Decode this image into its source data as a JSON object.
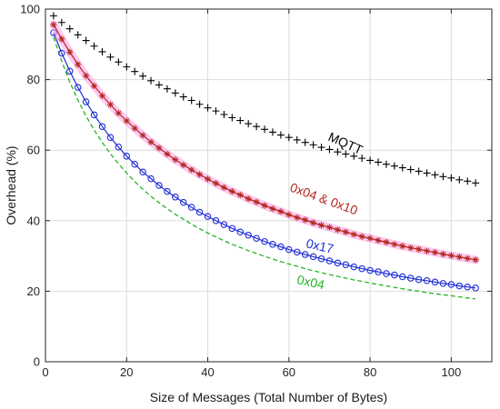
{
  "chart_data": {
    "type": "line",
    "title": "",
    "xlabel": "Size of Messages (Total Number of Bytes)",
    "ylabel": "Overhead (%)",
    "xlim": [
      0,
      110
    ],
    "ylim": [
      0,
      100
    ],
    "xticks": [
      0,
      20,
      40,
      60,
      80,
      100
    ],
    "yticks": [
      0,
      20,
      40,
      60,
      80,
      100
    ],
    "grid": true,
    "legend": "none (series labeled inline)",
    "x": [
      2,
      4,
      6,
      8,
      10,
      12,
      14,
      16,
      18,
      20,
      22,
      24,
      26,
      28,
      30,
      32,
      34,
      36,
      38,
      40,
      42,
      44,
      46,
      48,
      50,
      52,
      54,
      56,
      58,
      60,
      62,
      64,
      66,
      68,
      70,
      72,
      74,
      76,
      78,
      80,
      82,
      84,
      86,
      88,
      90,
      92,
      94,
      96,
      98,
      100,
      102,
      104,
      106
    ],
    "series": [
      {
        "name": "MQTT",
        "color": "#000000",
        "marker": "plus",
        "line": "none",
        "values": [
          98.1,
          96.2,
          94.4,
          92.7,
          91.1,
          89.5,
          87.9,
          86.4,
          85.0,
          83.6,
          82.3,
          81.0,
          79.7,
          78.5,
          77.4,
          76.2,
          75.1,
          74.1,
          73.0,
          72.0,
          71.1,
          70.1,
          69.2,
          68.4,
          67.5,
          66.7,
          65.9,
          65.1,
          64.3,
          63.6,
          62.9,
          62.2,
          61.5,
          60.8,
          60.2,
          59.5,
          58.9,
          58.3,
          57.7,
          57.1,
          56.6,
          56.0,
          55.5,
          55.0,
          54.5,
          54.0,
          53.5,
          53.0,
          52.5,
          52.1,
          51.6,
          51.2,
          50.7
        ]
      },
      {
        "name": "0x04 & 0x10",
        "color": "#b3261e",
        "marker": "asterisk",
        "line": "solid",
        "values": [
          95.6,
          91.5,
          87.8,
          84.3,
          81.1,
          78.2,
          75.4,
          72.9,
          70.5,
          68.3,
          66.2,
          64.2,
          62.3,
          60.6,
          58.9,
          57.3,
          55.8,
          54.4,
          53.1,
          51.8,
          50.6,
          49.4,
          48.3,
          47.3,
          46.2,
          45.3,
          44.3,
          43.4,
          42.6,
          41.7,
          40.9,
          40.2,
          39.4,
          38.7,
          38.1,
          37.4,
          36.8,
          36.1,
          35.5,
          35.0,
          34.4,
          33.9,
          33.3,
          32.8,
          32.3,
          31.9,
          31.4,
          31.0,
          30.5,
          30.1,
          29.7,
          29.3,
          28.9
        ]
      },
      {
        "name": "0x17",
        "color": "#1f2ed6",
        "marker": "circle",
        "line": "solid",
        "values": [
          93.3,
          87.5,
          82.4,
          77.8,
          73.7,
          70.0,
          66.7,
          63.6,
          60.9,
          58.3,
          56.0,
          53.8,
          51.9,
          50.0,
          48.3,
          46.7,
          45.2,
          43.8,
          42.4,
          41.2,
          40.0,
          38.9,
          37.8,
          36.8,
          35.9,
          35.0,
          34.1,
          33.3,
          32.6,
          31.8,
          31.1,
          30.4,
          29.8,
          29.2,
          28.6,
          28.0,
          27.5,
          26.9,
          26.4,
          25.9,
          25.5,
          25.0,
          24.6,
          24.1,
          23.7,
          23.3,
          23.0,
          22.6,
          22.2,
          21.9,
          21.5,
          21.2,
          20.9
        ]
      },
      {
        "name": "0x04",
        "color": "#22b522",
        "marker": "none",
        "line": "dashed",
        "values": [
          92.0,
          85.2,
          79.3,
          74.2,
          69.7,
          65.7,
          62.2,
          59.0,
          56.1,
          53.5,
          51.1,
          48.9,
          46.9,
          45.1,
          43.4,
          41.8,
          40.4,
          39.0,
          37.7,
          36.5,
          35.4,
          34.3,
          33.3,
          32.4,
          31.5,
          30.7,
          29.9,
          29.1,
          28.4,
          27.7,
          27.1,
          26.4,
          25.8,
          25.3,
          24.7,
          24.2,
          23.7,
          23.2,
          22.8,
          22.3,
          21.9,
          21.5,
          21.1,
          20.7,
          20.3,
          20.0,
          19.6,
          19.3,
          19.0,
          18.7,
          18.4,
          18.1,
          17.8
        ]
      }
    ]
  }
}
